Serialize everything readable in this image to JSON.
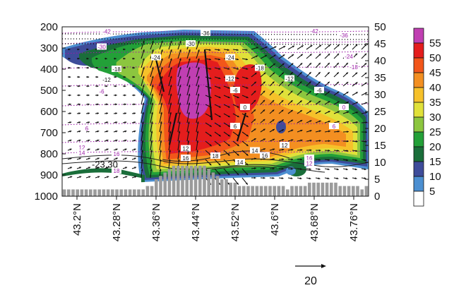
{
  "chart_data": {
    "type": "heatmap",
    "title": "",
    "xlabel": "",
    "ylabel": "",
    "x_ticks": [
      "43.2°N",
      "43.28°N",
      "43.36°N",
      "43.44°N",
      "43.52°N",
      "43.6°N",
      "43.68°N",
      "43.76°N"
    ],
    "x_values": [
      43.2,
      43.28,
      43.36,
      43.44,
      43.52,
      43.6,
      43.68,
      43.76
    ],
    "xlim": [
      43.17,
      43.79
    ],
    "y_left_ticks": [
      "200",
      "300",
      "400",
      "500",
      "600",
      "700",
      "800",
      "900",
      "1000"
    ],
    "y_left_values": [
      200,
      300,
      400,
      500,
      600,
      700,
      800,
      900,
      1000
    ],
    "y_right_ticks": [
      "0",
      "5",
      "10",
      "15",
      "20",
      "25",
      "30",
      "35",
      "40",
      "45",
      "50"
    ],
    "y_right_values": [
      0,
      5,
      10,
      15,
      20,
      25,
      30,
      35,
      40,
      45,
      50
    ],
    "colorbar": {
      "labels": [
        "55",
        "50",
        "45",
        "40",
        "35",
        "30",
        "25",
        "20",
        "15",
        "10",
        "5"
      ],
      "levels": [
        55,
        50,
        45,
        40,
        35,
        30,
        25,
        20,
        15,
        10,
        5
      ],
      "colors": [
        "#c03fb2",
        "#e41d1d",
        "#f2561a",
        "#f38f21",
        "#f6c12a",
        "#e0e13a",
        "#8cc63f",
        "#23a038",
        "#1a6e3a",
        "#3e4c9a",
        "#4c8fd1",
        "#ffffff"
      ]
    },
    "wind_reference": {
      "label": "20",
      "value": 20
    },
    "annotations": [
      {
        "label": "-23.30",
        "x": 43.23,
        "y": 865
      }
    ],
    "contour_labels": [
      {
        "label": "-42",
        "x": 43.26,
        "y": 222,
        "color": "#9b1da6"
      },
      {
        "label": "-36",
        "x": 43.46,
        "y": 230,
        "color": "#111111"
      },
      {
        "label": "-42",
        "x": 43.68,
        "y": 220,
        "color": "#9b1da6"
      },
      {
        "label": "-36",
        "x": 43.74,
        "y": 240,
        "color": "#9b1da6"
      },
      {
        "label": "-30",
        "x": 43.25,
        "y": 295,
        "color": "#9b1da6"
      },
      {
        "label": "-30",
        "x": 43.43,
        "y": 280,
        "color": "#111111"
      },
      {
        "label": "-24",
        "x": 43.36,
        "y": 345,
        "color": "#111111"
      },
      {
        "label": "-24",
        "x": 43.51,
        "y": 345,
        "color": "#111111"
      },
      {
        "label": "-24",
        "x": 43.75,
        "y": 340,
        "color": "#9b1da6"
      },
      {
        "label": "-18",
        "x": 43.28,
        "y": 400,
        "color": "#111111"
      },
      {
        "label": "-18",
        "x": 43.57,
        "y": 395,
        "color": "#111111"
      },
      {
        "label": "-18",
        "x": 43.76,
        "y": 390,
        "color": "#9b1da6"
      },
      {
        "label": "-12",
        "x": 43.26,
        "y": 450,
        "color": "#111111"
      },
      {
        "label": "-12",
        "x": 43.51,
        "y": 445,
        "color": "#111111"
      },
      {
        "label": "-12",
        "x": 43.63,
        "y": 445,
        "color": "#111111"
      },
      {
        "label": "-6",
        "x": 43.25,
        "y": 505,
        "color": "#9b1da6"
      },
      {
        "label": "-6",
        "x": 43.52,
        "y": 500,
        "color": "#111111"
      },
      {
        "label": "-6",
        "x": 43.69,
        "y": 500,
        "color": "#111111"
      },
      {
        "label": "0",
        "x": 43.54,
        "y": 580,
        "color": "#111111"
      },
      {
        "label": "0",
        "x": 43.74,
        "y": 580,
        "color": "#9b1da6"
      },
      {
        "label": "6",
        "x": 43.22,
        "y": 680,
        "color": "#9b1da6"
      },
      {
        "label": "6",
        "x": 43.52,
        "y": 670,
        "color": "#111111"
      },
      {
        "label": "6",
        "x": 43.72,
        "y": 670,
        "color": "#9b1da6"
      },
      {
        "label": "12",
        "x": 43.21,
        "y": 770,
        "color": "#9b1da6"
      },
      {
        "label": "12",
        "x": 43.42,
        "y": 775,
        "color": "#111111"
      },
      {
        "label": "12",
        "x": 43.62,
        "y": 760,
        "color": "#111111"
      },
      {
        "label": "14",
        "x": 43.21,
        "y": 795,
        "color": "#9b1da6"
      },
      {
        "label": "14",
        "x": 43.56,
        "y": 785,
        "color": "#111111"
      },
      {
        "label": "16",
        "x": 43.28,
        "y": 800,
        "color": "#9b1da6"
      },
      {
        "label": "16",
        "x": 43.42,
        "y": 820,
        "color": "#111111"
      },
      {
        "label": "16",
        "x": 43.58,
        "y": 808,
        "color": "#111111"
      },
      {
        "label": "16",
        "x": 43.67,
        "y": 820,
        "color": "#9b1da6"
      },
      {
        "label": "12",
        "x": 43.67,
        "y": 845,
        "color": "#9b1da6"
      },
      {
        "label": "18",
        "x": 43.48,
        "y": 810,
        "color": "#111111"
      },
      {
        "label": "18",
        "x": 43.28,
        "y": 880,
        "color": "#9b1da6"
      },
      {
        "label": "14",
        "x": 43.53,
        "y": 840,
        "color": "#111111"
      }
    ],
    "terrain_bars": [
      2,
      2,
      2,
      2,
      2,
      2,
      2,
      2,
      2,
      2,
      2,
      2,
      2,
      2,
      2,
      2,
      2,
      2,
      2,
      3,
      3,
      5,
      6,
      7,
      8,
      9,
      9,
      9,
      9,
      9,
      9,
      9,
      9,
      8,
      7,
      6,
      5,
      5,
      4,
      4,
      3,
      3,
      3,
      3,
      3,
      3,
      3,
      3,
      3,
      3,
      3,
      2,
      3,
      3,
      3,
      3,
      4,
      4,
      4,
      4,
      4,
      4,
      4,
      3,
      3,
      3,
      3,
      3,
      2,
      3
    ]
  }
}
